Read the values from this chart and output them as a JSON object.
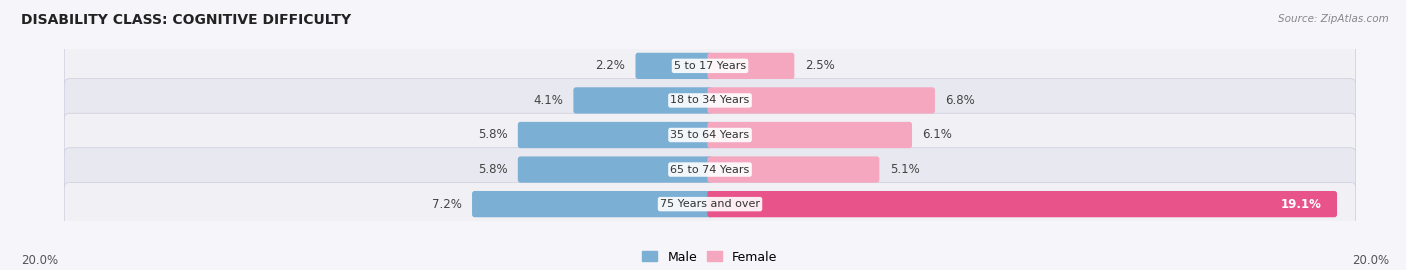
{
  "title": "DISABILITY CLASS: COGNITIVE DIFFICULTY",
  "source": "Source: ZipAtlas.com",
  "categories": [
    "5 to 17 Years",
    "18 to 34 Years",
    "35 to 64 Years",
    "65 to 74 Years",
    "75 Years and over"
  ],
  "male_values": [
    2.2,
    4.1,
    5.8,
    5.8,
    7.2
  ],
  "female_values": [
    2.5,
    6.8,
    6.1,
    5.1,
    19.1
  ],
  "male_color": "#7bafd4",
  "female_color_normal": "#f4a7bf",
  "female_color_highlight": "#e8538a",
  "female_highlight_index": 4,
  "row_bg_color_light": "#f0f0f5",
  "row_bg_color_dark": "#e8e8f0",
  "bg_color": "#f5f5fa",
  "max_value": 20.0,
  "axis_label_left": "20.0%",
  "axis_label_right": "20.0%",
  "legend_male": "Male",
  "legend_female": "Female"
}
